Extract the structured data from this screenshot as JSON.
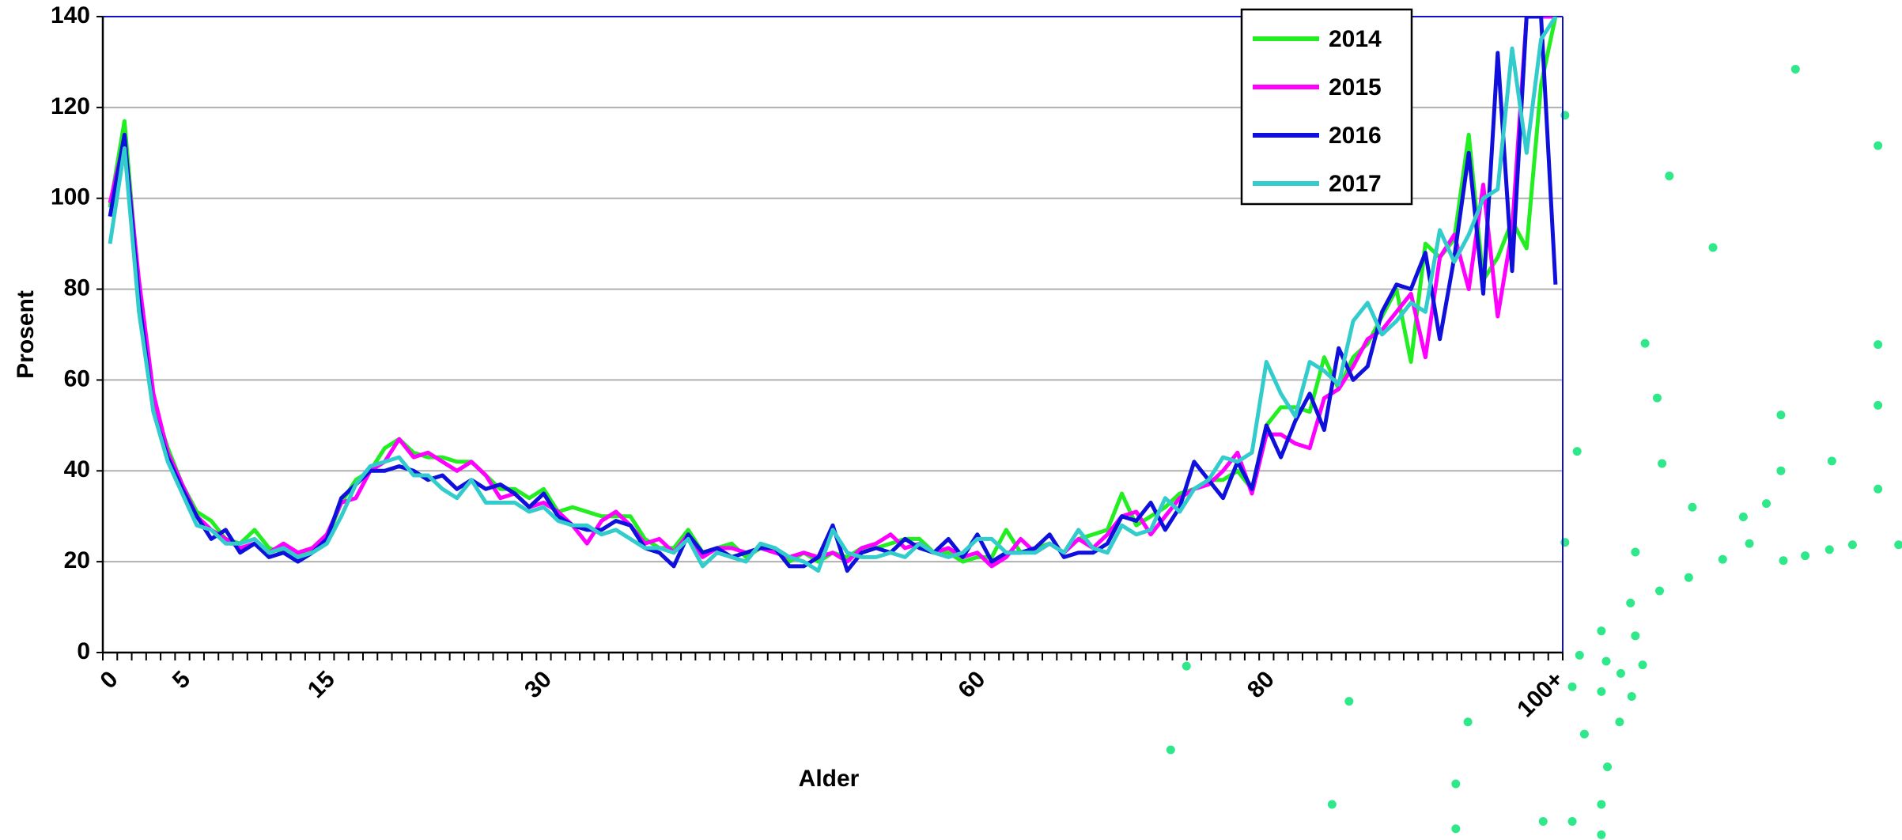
{
  "chart_data": {
    "type": "line",
    "xlabel": "Alder",
    "ylabel": "Prosent",
    "categories": [
      "0",
      null,
      null,
      null,
      null,
      "5",
      null,
      null,
      null,
      null,
      null,
      null,
      null,
      null,
      null,
      "15",
      null,
      null,
      null,
      null,
      null,
      null,
      null,
      null,
      null,
      null,
      null,
      null,
      null,
      null,
      "30",
      null,
      null,
      null,
      null,
      null,
      null,
      null,
      null,
      null,
      null,
      null,
      null,
      null,
      null,
      null,
      null,
      null,
      null,
      null,
      null,
      null,
      null,
      null,
      null,
      null,
      null,
      null,
      null,
      null,
      "60",
      null,
      null,
      null,
      null,
      null,
      null,
      null,
      null,
      null,
      null,
      null,
      null,
      null,
      null,
      null,
      null,
      null,
      null,
      null,
      "80",
      null,
      null,
      null,
      null,
      null,
      null,
      null,
      null,
      null,
      null,
      null,
      null,
      null,
      null,
      null,
      null,
      null,
      null,
      null,
      "100+"
    ],
    "ylim": [
      0,
      140
    ],
    "yticks": [
      0,
      20,
      40,
      60,
      80,
      100,
      120,
      140
    ],
    "grid": true,
    "legend": "upper right",
    "series": [
      {
        "name": "2014",
        "color": "#22ee22",
        "values": [
          98,
          117,
          80,
          55,
          45,
          37,
          31,
          29,
          25,
          24,
          27,
          23,
          22,
          21,
          23,
          25,
          33,
          38,
          40,
          45,
          47,
          44,
          43,
          43,
          42,
          42,
          39,
          36,
          36,
          34,
          36,
          31,
          32,
          31,
          30,
          30,
          30,
          25,
          23,
          23,
          27,
          22,
          23,
          24,
          21,
          23,
          23,
          20,
          22,
          20,
          22,
          21,
          23,
          23,
          24,
          25,
          25,
          22,
          22,
          20,
          21,
          21,
          27,
          22,
          23,
          24,
          22,
          25,
          26,
          27,
          35,
          28,
          30,
          32,
          35,
          36,
          38,
          38,
          40,
          36,
          50,
          54,
          54,
          53,
          65,
          58,
          65,
          68,
          74,
          80,
          64,
          90,
          87,
          91,
          114,
          82,
          87,
          95,
          89,
          125,
          140
        ]
      },
      {
        "name": "2015",
        "color": "#ff00ff",
        "values": [
          99,
          113,
          82,
          57,
          44,
          37,
          30,
          27,
          25,
          23,
          24,
          22,
          24,
          22,
          23,
          26,
          33,
          34,
          40,
          42,
          47,
          43,
          44,
          42,
          40,
          42,
          39,
          34,
          35,
          32,
          33,
          31,
          28,
          24,
          29,
          31,
          28,
          24,
          25,
          22,
          26,
          21,
          23,
          23,
          22,
          23,
          22,
          21,
          22,
          21,
          22,
          20,
          23,
          24,
          26,
          23,
          24,
          22,
          23,
          21,
          22,
          19,
          21,
          25,
          22,
          24,
          22,
          25,
          23,
          26,
          30,
          31,
          26,
          30,
          34,
          36,
          37,
          40,
          44,
          35,
          48,
          48,
          46,
          45,
          56,
          58,
          63,
          69,
          71,
          75,
          79,
          65,
          87,
          92,
          80,
          103,
          74,
          93,
          140,
          140,
          140
        ]
      },
      {
        "name": "2016",
        "color": "#1010dd",
        "values": [
          96,
          114,
          78,
          53,
          43,
          36,
          30,
          25,
          27,
          22,
          24,
          21,
          22,
          20,
          22,
          25,
          34,
          37,
          40,
          40,
          41,
          40,
          38,
          39,
          36,
          38,
          36,
          37,
          35,
          32,
          35,
          30,
          28,
          27,
          27,
          29,
          28,
          23,
          22,
          19,
          26,
          22,
          23,
          21,
          22,
          23,
          23,
          19,
          19,
          21,
          28,
          18,
          22,
          23,
          22,
          25,
          23,
          22,
          25,
          21,
          26,
          20,
          22,
          22,
          23,
          26,
          21,
          22,
          22,
          24,
          30,
          29,
          33,
          27,
          32,
          42,
          38,
          34,
          42,
          36,
          50,
          43,
          51,
          57,
          49,
          67,
          60,
          63,
          75,
          81,
          80,
          88,
          69,
          87,
          110,
          79,
          132,
          84,
          140,
          140,
          81
        ]
      },
      {
        "name": "2017",
        "color": "#33cccc",
        "values": [
          90,
          111,
          75,
          53,
          42,
          35,
          28,
          27,
          24,
          24,
          25,
          22,
          23,
          21,
          22,
          24,
          30,
          37,
          41,
          42,
          43,
          39,
          39,
          36,
          34,
          38,
          33,
          33,
          33,
          31,
          32,
          29,
          28,
          28,
          26,
          27,
          25,
          23,
          23,
          22,
          25,
          19,
          22,
          21,
          20,
          24,
          23,
          21,
          20,
          18,
          27,
          22,
          21,
          21,
          22,
          21,
          24,
          22,
          21,
          22,
          25,
          25,
          22,
          22,
          22,
          24,
          22,
          27,
          23,
          22,
          28,
          26,
          27,
          34,
          31,
          36,
          38,
          43,
          42,
          44,
          64,
          57,
          52,
          64,
          62,
          59,
          73,
          77,
          70,
          73,
          77,
          75,
          93,
          86,
          92,
          100,
          102,
          133,
          110,
          135,
          140
        ]
      }
    ]
  }
}
